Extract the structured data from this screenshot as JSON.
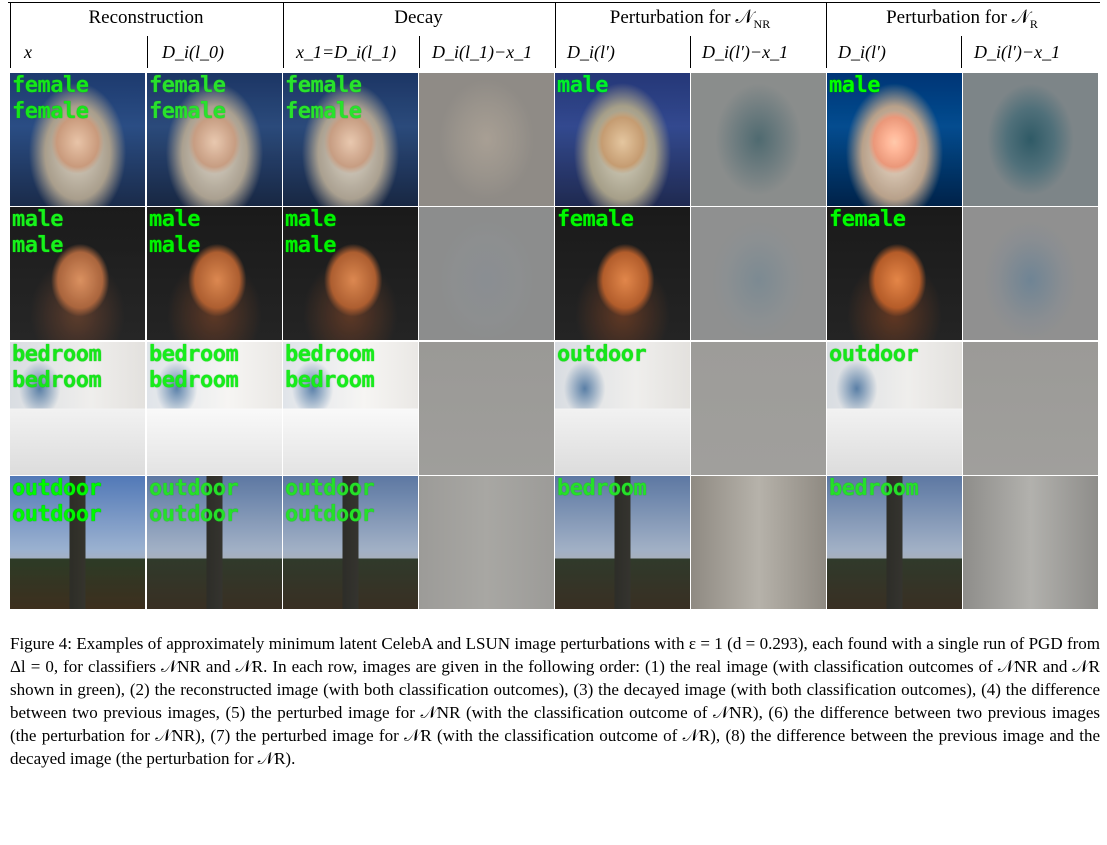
{
  "header": {
    "groups": [
      "Reconstruction",
      "Decay",
      "Perturbation for 𝒩_NR",
      "Perturbation for 𝒩_R"
    ],
    "group_main": [
      "Reconstruction",
      "Decay",
      "Perturbation for 𝒩",
      "Perturbation for 𝒩"
    ],
    "group_sub": [
      "",
      "",
      "NR",
      "R"
    ],
    "columns": [
      "x",
      "D_i(l_0)",
      "x_1=D_i(l_1)",
      "D_i(l_1)−x_1",
      "D_i(l′)",
      "D_i(l′)−x_1",
      "D_i(l′)",
      "D_i(l′)−x_1"
    ]
  },
  "rows": [
    {
      "name": "female-face",
      "labels": [
        [
          "female",
          "female"
        ],
        [
          "female",
          "female"
        ],
        [
          "female",
          "female"
        ],
        [],
        [
          "male"
        ],
        [],
        [
          "male"
        ],
        []
      ]
    },
    {
      "name": "male-face",
      "labels": [
        [
          "male",
          "male"
        ],
        [
          "male",
          "male"
        ],
        [
          "male",
          "male"
        ],
        [],
        [
          "female"
        ],
        [],
        [
          "female"
        ],
        []
      ]
    },
    {
      "name": "bedroom",
      "labels": [
        [
          "bedroom",
          "bedroom"
        ],
        [
          "bedroom",
          "bedroom"
        ],
        [
          "bedroom",
          "bedroom"
        ],
        [],
        [
          "outdoor"
        ],
        [],
        [
          "outdoor"
        ],
        []
      ]
    },
    {
      "name": "outdoor-tower",
      "labels": [
        [
          "outdoor",
          "outdoor"
        ],
        [
          "outdoor",
          "outdoor"
        ],
        [
          "outdoor",
          "outdoor"
        ],
        [],
        [
          "bedroom"
        ],
        [],
        [
          "bedroom"
        ],
        []
      ]
    }
  ],
  "caption": {
    "figure": "Figure 4:",
    "text": "Examples of approximately minimum latent CelebA and LSUN image perturbations with ε = 1 (d = 0.293), each found with a single run of PGD from Δl = 0, for classifiers 𝒩NR and 𝒩R. In each row, images are given in the following order: (1) the real image (with classification outcomes of 𝒩NR and 𝒩R shown in green), (2) the reconstructed image (with both classification outcomes), (3) the decayed image (with both classification outcomes), (4) the difference between two previous images, (5) the perturbed image for 𝒩NR (with the classification outcome of 𝒩NR), (6) the difference between two previous images (the perturbation for 𝒩NR), (7) the perturbed image for 𝒩R (with the classification outcome of 𝒩R), (8) the difference between the previous image and the decayed image (the perturbation for 𝒩R)."
  }
}
